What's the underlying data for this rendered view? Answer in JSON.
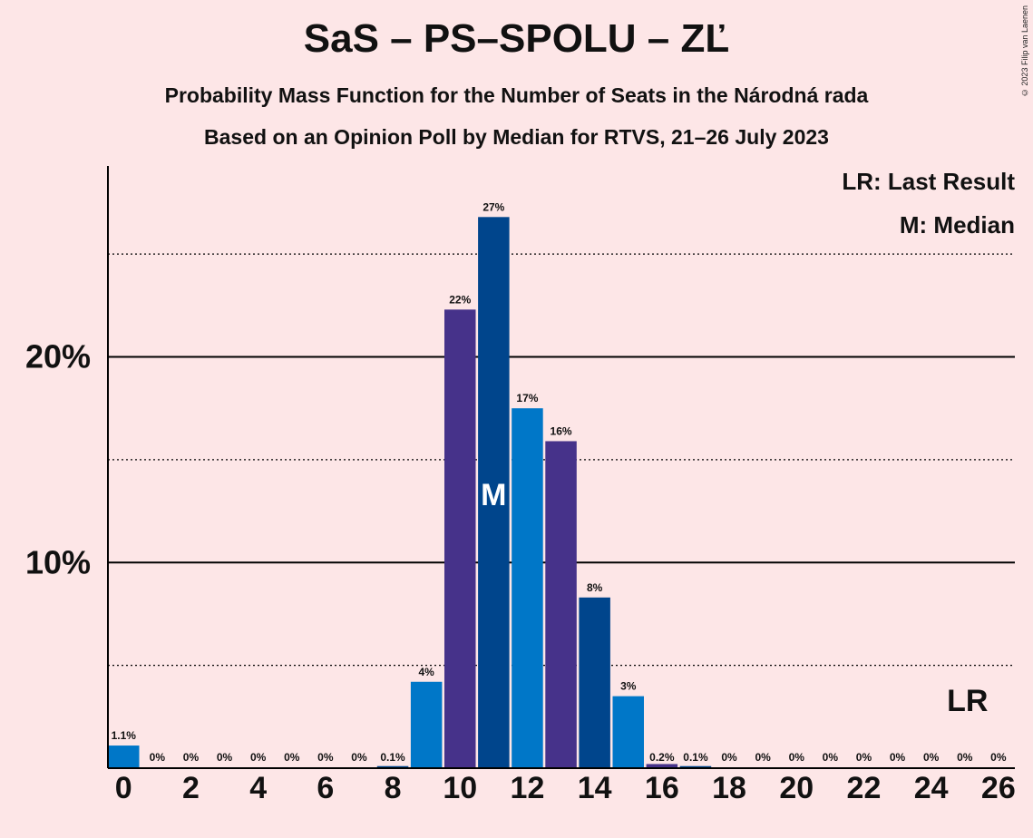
{
  "title": "SaS – PS–SPOLU – ZĽ",
  "subtitle_1": "Probability Mass Function for the Number of Seats in the Národná rada",
  "subtitle_2": "Based on an Opinion Poll by Median for RTVS, 21–26 July 2023",
  "copyright": "© 2023 Filip van Laenen",
  "legend": {
    "last_result": "LR: Last Result",
    "median": "M: Median"
  },
  "markers": {
    "median_label": "M",
    "median_seat": 11,
    "last_result_label": "LR",
    "last_result_seat": 25
  },
  "colors": {
    "background": "#fde6e7",
    "bar_light": "#0077c8",
    "bar_purple": "#46328a",
    "bar_dark": "#00458c"
  },
  "chart_data": {
    "type": "bar",
    "x": [
      0,
      1,
      2,
      3,
      4,
      5,
      6,
      7,
      8,
      9,
      10,
      11,
      12,
      13,
      14,
      15,
      16,
      17,
      18,
      19,
      20,
      21,
      22,
      23,
      24,
      25,
      26
    ],
    "values": [
      1.1,
      0,
      0,
      0,
      0,
      0,
      0,
      0,
      0.1,
      4.2,
      22.3,
      26.8,
      17.5,
      15.9,
      8.3,
      3.5,
      0.2,
      0.1,
      0,
      0,
      0,
      0,
      0,
      0,
      0,
      0,
      0
    ],
    "value_labels": [
      "1.1%",
      "0%",
      "0%",
      "0%",
      "0%",
      "0%",
      "0%",
      "0%",
      "0.1%",
      "4%",
      "22%",
      "27%",
      "17%",
      "16%",
      "8%",
      "3%",
      "0.2%",
      "0.1%",
      "0%",
      "0%",
      "0%",
      "0%",
      "0%",
      "0%",
      "0%",
      "0%",
      "0%"
    ],
    "x_tick_labels": [
      "0",
      "2",
      "4",
      "6",
      "8",
      "10",
      "12",
      "14",
      "16",
      "18",
      "20",
      "22",
      "24",
      "26"
    ],
    "y_tick_labels": [
      "10%",
      "20%"
    ],
    "y_ticks": [
      10,
      20
    ],
    "y_dotted_lines": [
      5,
      15,
      25
    ],
    "ylim": [
      0,
      29.3
    ],
    "grid": true
  }
}
